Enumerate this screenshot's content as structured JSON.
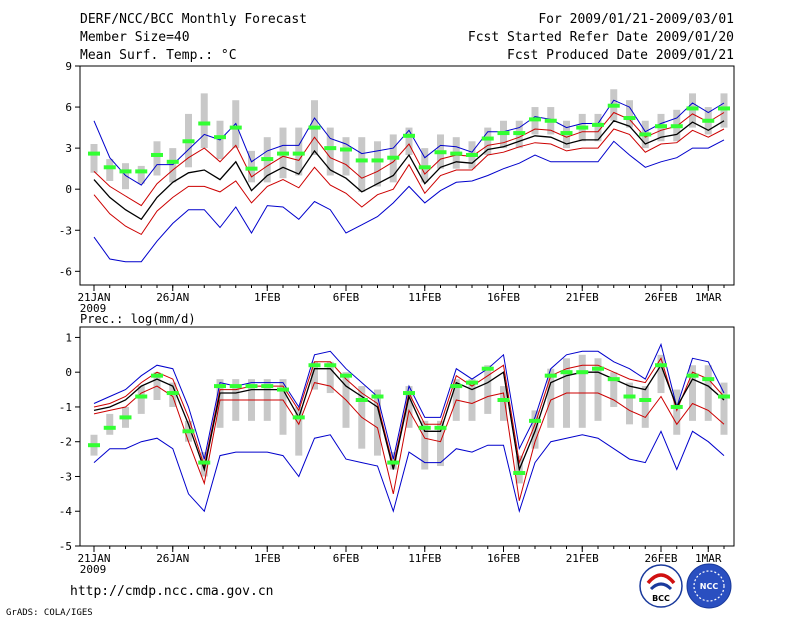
{
  "header": {
    "title": "DERF/NCC/BCC Monthly Forecast",
    "member_size": "Member Size=40",
    "variable": "Mean Surf. Temp.: °C",
    "period": "For 2009/01/21-2009/03/01",
    "started": "Fcst Started Refer Date 2009/01/20",
    "produced": "Fcst Produced Date 2009/01/21"
  },
  "footer": {
    "url": "http://cmdp.ncc.cma.gov.cn",
    "grads": "GrADS: COLA/IGES",
    "logo_left": "BCC",
    "logo_right": "NCC"
  },
  "colors": {
    "box": "#c8c8c8",
    "median": "#33ff33",
    "mean": "#000000",
    "sd": "#cc0000",
    "minmax": "#0000cc"
  },
  "chart_data": [
    {
      "type": "line",
      "title": "Mean Surf. Temp.: °C",
      "xlabel": "",
      "ylabel": "",
      "ylim": [
        -7,
        9
      ],
      "yticks": [
        -6,
        -3,
        0,
        3,
        6,
        9
      ],
      "x_tick_labels": [
        {
          "day": 1,
          "label": "21JAN",
          "sub": "2009"
        },
        {
          "day": 6,
          "label": "26JAN"
        },
        {
          "day": 12,
          "label": "1FEB"
        },
        {
          "day": 17,
          "label": "6FEB"
        },
        {
          "day": 22,
          "label": "11FEB"
        },
        {
          "day": 27,
          "label": "16FEB"
        },
        {
          "day": 32,
          "label": "21FEB"
        },
        {
          "day": 37,
          "label": "26FEB"
        },
        {
          "day": 40,
          "label": "1MAR"
        }
      ],
      "series": [
        {
          "name": "max",
          "values": [
            5.0,
            2.3,
            1.0,
            0.3,
            1.8,
            1.8,
            2.9,
            4.0,
            3.6,
            4.8,
            2.0,
            2.8,
            3.2,
            3.2,
            5.2,
            3.7,
            3.3,
            2.6,
            2.8,
            3.0,
            4.3,
            2.3,
            3.2,
            3.1,
            2.7,
            4.2,
            4.2,
            4.5,
            5.3,
            5.1,
            4.5,
            4.8,
            4.8,
            6.5,
            6.0,
            4.2,
            4.8,
            5.2,
            6.3,
            5.6,
            6.3
          ]
        },
        {
          "name": "sd_upper",
          "values": [
            1.3,
            0.2,
            -0.5,
            -1.2,
            0.4,
            1.4,
            2.3,
            3.0,
            2.0,
            3.2,
            0.9,
            1.7,
            2.4,
            2.1,
            3.8,
            2.3,
            1.8,
            0.8,
            1.3,
            2.0,
            3.3,
            1.1,
            2.2,
            2.5,
            2.4,
            3.2,
            3.4,
            3.8,
            4.4,
            4.3,
            3.8,
            4.2,
            4.2,
            5.6,
            5.1,
            3.8,
            4.3,
            4.6,
            5.5,
            4.9,
            5.6
          ]
        },
        {
          "name": "mean",
          "values": [
            0.7,
            -0.6,
            -1.5,
            -2.2,
            -0.6,
            0.5,
            1.2,
            1.4,
            0.7,
            2.0,
            -0.1,
            1.0,
            1.6,
            1.1,
            2.8,
            1.4,
            0.8,
            -0.2,
            0.4,
            1.0,
            2.5,
            0.4,
            1.6,
            2.0,
            1.9,
            2.9,
            3.1,
            3.5,
            3.9,
            3.8,
            3.3,
            3.6,
            3.6,
            5.0,
            4.6,
            3.3,
            3.8,
            4.0,
            4.9,
            4.3,
            5.0
          ]
        },
        {
          "name": "sd_lower",
          "values": [
            -0.4,
            -1.8,
            -2.7,
            -3.3,
            -1.6,
            -0.6,
            0.2,
            0.2,
            -0.2,
            0.6,
            -1.0,
            0.2,
            0.7,
            0.1,
            1.6,
            0.3,
            -0.3,
            -1.3,
            -0.4,
            0.0,
            1.8,
            -0.3,
            1.0,
            1.4,
            1.4,
            2.5,
            2.7,
            3.1,
            3.4,
            3.3,
            2.8,
            3.0,
            3.0,
            4.4,
            4.0,
            2.7,
            3.3,
            3.4,
            4.3,
            3.8,
            4.4
          ]
        },
        {
          "name": "min",
          "values": [
            -3.5,
            -5.1,
            -5.3,
            -5.3,
            -3.8,
            -2.5,
            -1.5,
            -1.5,
            -2.8,
            -1.3,
            -3.2,
            -1.2,
            -1.3,
            -2.2,
            -0.9,
            -1.5,
            -3.2,
            -2.6,
            -2.0,
            -1.0,
            0.2,
            -1.0,
            -0.1,
            0.5,
            0.6,
            1.0,
            1.5,
            1.9,
            2.5,
            2.0,
            2.0,
            2.0,
            2.0,
            3.5,
            2.5,
            1.6,
            2.0,
            2.3,
            3.0,
            3.0,
            3.6
          ]
        },
        {
          "name": "median",
          "values": [
            2.6,
            1.6,
            1.3,
            1.3,
            2.5,
            2.0,
            3.5,
            4.8,
            3.8,
            4.5,
            1.5,
            2.2,
            2.6,
            2.6,
            4.5,
            3.0,
            2.9,
            2.1,
            2.1,
            2.3,
            3.9,
            1.6,
            2.7,
            2.6,
            2.5,
            3.7,
            4.1,
            4.1,
            5.1,
            5.0,
            4.1,
            4.5,
            4.7,
            6.1,
            5.2,
            4.0,
            4.6,
            4.6,
            5.9,
            5.0,
            5.9
          ]
        },
        {
          "name": "box_top",
          "values": [
            3.3,
            2.2,
            1.9,
            1.7,
            3.5,
            3.0,
            5.5,
            7.0,
            5.0,
            6.5,
            2.8,
            3.8,
            4.5,
            4.5,
            6.5,
            4.5,
            3.8,
            3.8,
            3.5,
            4.0,
            4.5,
            3.0,
            4.0,
            3.8,
            3.5,
            4.5,
            5.0,
            5.0,
            6.0,
            6.0,
            5.0,
            5.5,
            5.5,
            7.3,
            6.5,
            5.0,
            5.5,
            5.8,
            7.0,
            6.0,
            7.0
          ]
        },
        {
          "name": "box_bottom",
          "values": [
            1.2,
            0.6,
            0.0,
            0.4,
            1.0,
            0.5,
            1.6,
            3.0,
            2.2,
            3.0,
            0.5,
            0.5,
            0.8,
            1.0,
            2.5,
            1.0,
            1.0,
            -0.2,
            0.2,
            0.5,
            2.5,
            0.5,
            1.5,
            1.5,
            1.5,
            2.5,
            3.0,
            3.0,
            4.0,
            4.0,
            3.0,
            3.5,
            3.5,
            5.0,
            4.5,
            3.0,
            3.5,
            3.5,
            4.5,
            4.0,
            4.5
          ]
        }
      ]
    },
    {
      "type": "line",
      "title": "Prec.: log(mm/d)",
      "xlabel": "",
      "ylabel": "",
      "ylim": [
        -5,
        1.3
      ],
      "yticks": [
        -5,
        -4,
        -3,
        -2,
        -1,
        0,
        1
      ],
      "x_tick_labels": [
        {
          "day": 1,
          "label": "21JAN",
          "sub": "2009"
        },
        {
          "day": 6,
          "label": "26JAN"
        },
        {
          "day": 12,
          "label": "1FEB"
        },
        {
          "day": 17,
          "label": "6FEB"
        },
        {
          "day": 22,
          "label": "11FEB"
        },
        {
          "day": 27,
          "label": "16FEB"
        },
        {
          "day": 32,
          "label": "21FEB"
        },
        {
          "day": 37,
          "label": "26FEB"
        },
        {
          "day": 40,
          "label": "1MAR"
        }
      ],
      "series": [
        {
          "name": "max",
          "values": [
            -0.9,
            -0.7,
            -0.5,
            -0.1,
            0.2,
            0.1,
            -1.0,
            -2.5,
            -0.3,
            -0.4,
            -0.3,
            -0.3,
            -0.3,
            -1.0,
            0.5,
            0.6,
            0.1,
            -0.3,
            -0.7,
            -2.5,
            -0.4,
            -1.3,
            -1.3,
            0.1,
            -0.2,
            0.1,
            0.5,
            -2.2,
            -1.3,
            0.1,
            0.5,
            0.6,
            0.6,
            0.3,
            0.1,
            -0.2,
            0.8,
            -1.0,
            0.4,
            0.3,
            -0.6
          ]
        },
        {
          "name": "sd_upper",
          "values": [
            -1.0,
            -0.9,
            -0.7,
            -0.3,
            0.0,
            -0.2,
            -1.3,
            -2.7,
            -0.5,
            -0.5,
            -0.4,
            -0.4,
            -0.4,
            -1.1,
            0.3,
            0.3,
            -0.2,
            -0.6,
            -0.9,
            -2.7,
            -0.6,
            -1.5,
            -1.5,
            -0.1,
            -0.4,
            -0.1,
            0.2,
            -2.6,
            -1.5,
            -0.1,
            0.1,
            0.2,
            0.2,
            0.0,
            -0.2,
            -0.3,
            0.4,
            -1.1,
            0.0,
            -0.2,
            -0.7
          ]
        },
        {
          "name": "mean",
          "values": [
            -1.1,
            -1.0,
            -0.8,
            -0.4,
            -0.2,
            -0.4,
            -1.5,
            -2.8,
            -0.6,
            -0.6,
            -0.5,
            -0.5,
            -0.5,
            -1.3,
            0.1,
            0.1,
            -0.4,
            -0.7,
            -1.0,
            -2.8,
            -0.7,
            -1.7,
            -1.7,
            -0.3,
            -0.5,
            -0.3,
            0.0,
            -2.8,
            -1.7,
            -0.3,
            -0.1,
            0.0,
            0.0,
            -0.2,
            -0.4,
            -0.5,
            0.2,
            -1.0,
            -0.2,
            -0.4,
            -0.8
          ]
        },
        {
          "name": "sd_lower",
          "values": [
            -1.2,
            -1.1,
            -1.0,
            -0.6,
            -0.4,
            -0.7,
            -2.0,
            -3.2,
            -0.8,
            -0.8,
            -0.8,
            -0.8,
            -0.8,
            -1.5,
            -0.3,
            -0.4,
            -0.8,
            -1.3,
            -1.6,
            -3.5,
            -1.1,
            -1.9,
            -2.0,
            -0.8,
            -0.9,
            -0.7,
            -0.6,
            -3.7,
            -2.0,
            -0.8,
            -0.6,
            -0.6,
            -0.6,
            -0.8,
            -1.1,
            -1.3,
            -0.7,
            -1.5,
            -0.9,
            -1.1,
            -1.5
          ]
        },
        {
          "name": "min",
          "values": [
            -2.6,
            -2.2,
            -2.2,
            -2.0,
            -1.9,
            -2.2,
            -3.5,
            -4.0,
            -2.4,
            -2.3,
            -2.3,
            -2.3,
            -2.4,
            -3.0,
            -1.9,
            -1.8,
            -2.5,
            -2.6,
            -2.7,
            -4.0,
            -2.3,
            -2.6,
            -2.6,
            -2.2,
            -2.3,
            -2.1,
            -2.1,
            -4.0,
            -2.6,
            -2.0,
            -1.9,
            -1.8,
            -1.9,
            -2.2,
            -2.5,
            -2.6,
            -1.7,
            -2.8,
            -1.7,
            -2.0,
            -2.4
          ]
        },
        {
          "name": "median",
          "values": [
            -2.1,
            -1.6,
            -1.3,
            -0.7,
            -0.1,
            -0.6,
            -1.7,
            -2.6,
            -0.4,
            -0.4,
            -0.4,
            -0.4,
            -0.5,
            -1.3,
            0.2,
            0.2,
            -0.1,
            -0.8,
            -0.7,
            -2.6,
            -0.6,
            -1.6,
            -1.6,
            -0.4,
            -0.3,
            0.1,
            -0.8,
            -2.9,
            -1.4,
            -0.1,
            0.0,
            0.0,
            0.1,
            -0.2,
            -0.7,
            -0.8,
            0.2,
            -1.0,
            -0.1,
            -0.2,
            -0.7
          ]
        },
        {
          "name": "box_top",
          "values": [
            -1.8,
            -1.2,
            -1.0,
            -0.4,
            0.0,
            -0.3,
            -1.4,
            -2.3,
            -0.2,
            -0.2,
            -0.2,
            -0.2,
            -0.2,
            -1.0,
            0.3,
            0.3,
            0.0,
            -0.4,
            -0.5,
            -2.3,
            -0.4,
            -1.4,
            -1.4,
            -0.2,
            -0.2,
            0.2,
            -0.4,
            -2.4,
            -1.1,
            0.1,
            0.4,
            0.5,
            0.4,
            0.0,
            -0.3,
            -0.4,
            0.5,
            -0.5,
            0.2,
            0.2,
            -0.3
          ]
        },
        {
          "name": "box_bottom",
          "values": [
            -2.4,
            -1.8,
            -1.6,
            -1.2,
            -0.8,
            -1.0,
            -2.0,
            -3.0,
            -1.6,
            -1.4,
            -1.4,
            -1.4,
            -1.8,
            -2.4,
            -0.5,
            -0.6,
            -1.6,
            -2.2,
            -2.4,
            -2.8,
            -1.6,
            -2.8,
            -2.7,
            -1.4,
            -1.4,
            -1.2,
            -1.4,
            -3.2,
            -2.2,
            -1.6,
            -1.6,
            -1.6,
            -1.4,
            -1.0,
            -1.5,
            -1.6,
            -0.6,
            -1.8,
            -1.4,
            -1.4,
            -1.8
          ]
        }
      ]
    }
  ]
}
